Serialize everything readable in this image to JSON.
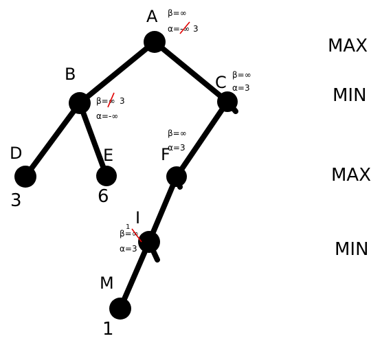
{
  "nodes": {
    "A": {
      "label": "A",
      "beta": "β=∞",
      "alpha": "α=-∞",
      "alpha_new": "3"
    },
    "B": {
      "label": "B",
      "beta": "β=∞",
      "beta_new": "3",
      "alpha": "α=-∞"
    },
    "C": {
      "label": "C",
      "beta": "β=∞",
      "alpha": "α=3"
    },
    "D": {
      "label": "D",
      "value": "3"
    },
    "E": {
      "label": "E",
      "value": "6"
    },
    "F": {
      "label": "F",
      "beta": "β=∞",
      "alpha": "α=3"
    },
    "I": {
      "label": "I",
      "beta": "β=∞",
      "beta_new": "1",
      "alpha": "α=3"
    },
    "M": {
      "label": "M",
      "value": "1"
    }
  },
  "levels": [
    "MAX",
    "MIN",
    "MAX",
    "MIN"
  ],
  "colors": {
    "strike": "#e00000",
    "ink": "#000000"
  }
}
